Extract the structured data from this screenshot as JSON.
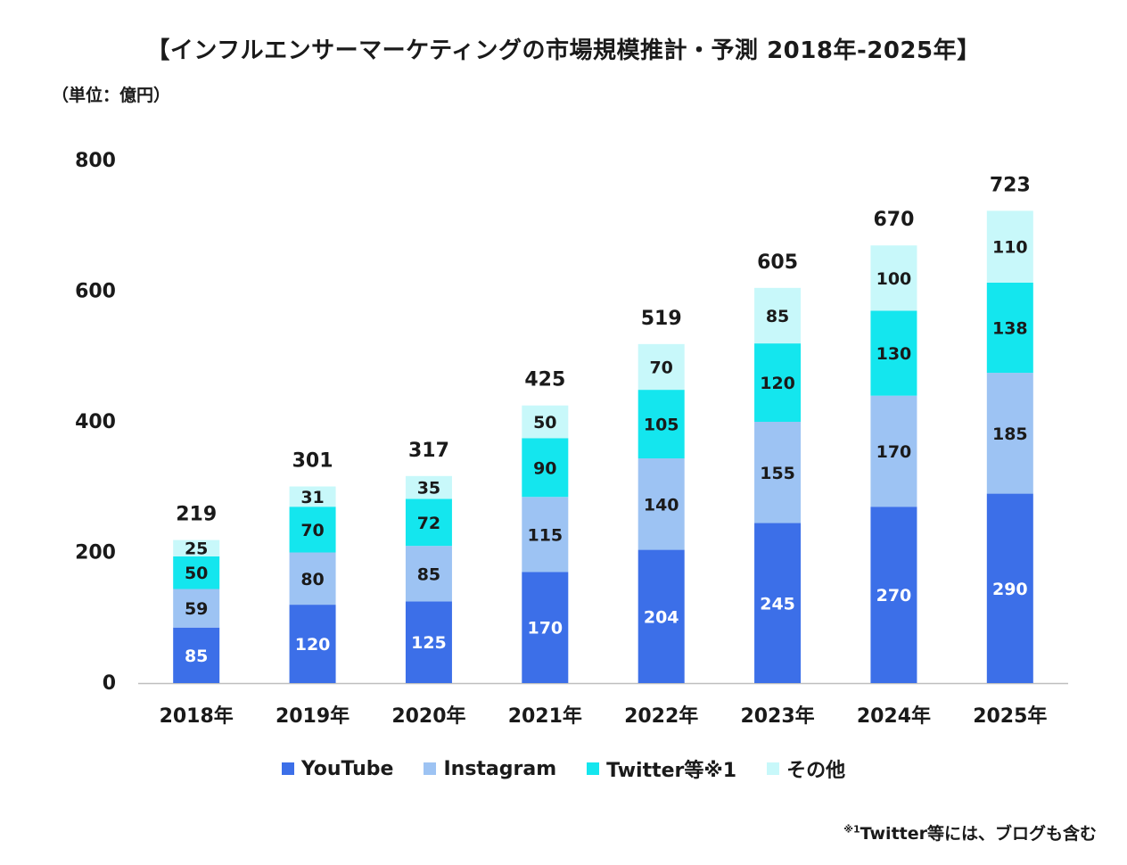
{
  "title": "【インフルエンサーマーケティングの市場規模推計・予測 2018年-2025年】",
  "unit_label": "（単位：億円）",
  "footnote": {
    "mark": "※1",
    "text": "Twitter等には、ブログも含む"
  },
  "colors": {
    "youtube": "#3c6fe8",
    "instagram": "#9dc3f3",
    "twitter": "#14e6ee",
    "other": "#c8f8fa",
    "axis": "#bfbfbf",
    "text_dark": "#1a1a1a",
    "text_light": "#ffffff"
  },
  "chart_data": {
    "type": "bar",
    "stacked": true,
    "title": "【インフルエンサーマーケティングの市場規模推計・予測 2018年-2025年】",
    "ylabel": "（単位：億円）",
    "xlabel": "",
    "ylim": [
      0,
      800
    ],
    "yticks": [
      0,
      200,
      400,
      600,
      800
    ],
    "grid": false,
    "legend_position": "bottom",
    "categories": [
      "2018年",
      "2019年",
      "2020年",
      "2021年",
      "2022年",
      "2023年",
      "2024年",
      "2025年"
    ],
    "series": [
      {
        "name": "YouTube",
        "color_key": "youtube",
        "label_color": "text_light",
        "values": [
          85,
          120,
          125,
          170,
          204,
          245,
          270,
          290
        ]
      },
      {
        "name": "Instagram",
        "color_key": "instagram",
        "label_color": "text_dark",
        "values": [
          59,
          80,
          85,
          115,
          140,
          155,
          170,
          185
        ]
      },
      {
        "name": "Twitter等※1",
        "color_key": "twitter",
        "label_color": "text_dark",
        "values": [
          50,
          70,
          72,
          90,
          105,
          120,
          130,
          138
        ]
      },
      {
        "name": "その他",
        "color_key": "other",
        "label_color": "text_dark",
        "values": [
          25,
          31,
          35,
          50,
          70,
          85,
          100,
          110
        ]
      }
    ],
    "totals": [
      219,
      301,
      317,
      425,
      519,
      605,
      670,
      723
    ]
  }
}
